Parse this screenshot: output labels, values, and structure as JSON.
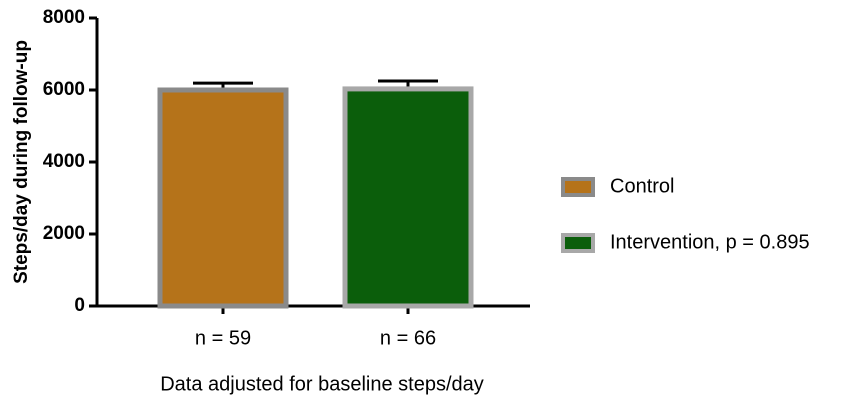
{
  "chart_data": {
    "type": "bar",
    "y_label": "Steps/day during follow-up",
    "x_label": "Data adjusted for baseline steps/day",
    "categories": [
      "n = 59",
      "n = 66"
    ],
    "series": [
      {
        "name": "Control",
        "color": "#b5731a",
        "edge": "#8a8a8a",
        "values": [
          6000,
          null
        ],
        "errors": [
          190,
          null
        ]
      },
      {
        "name": "Intervention, p = 0.895",
        "color": "#0b5e0b",
        "edge": "#a8a8a8",
        "values": [
          null,
          6030
        ],
        "errors": [
          null,
          220
        ]
      }
    ],
    "ylim": [
      0,
      8000
    ],
    "yticks": [
      0,
      2000,
      4000,
      6000,
      8000
    ],
    "legend": "right"
  }
}
